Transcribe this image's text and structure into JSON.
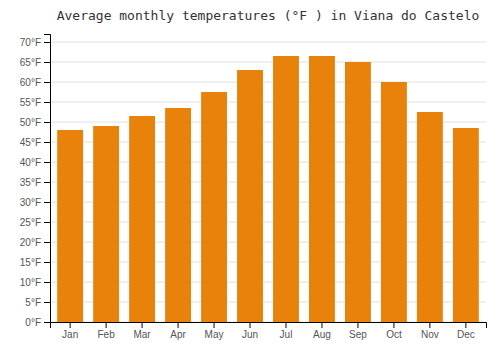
{
  "chart_data": {
    "type": "bar",
    "title": "Average monthly temperatures (°F ) in Viana do Castelo",
    "categories": [
      "Jan",
      "Feb",
      "Mar",
      "Apr",
      "May",
      "Jun",
      "Jul",
      "Aug",
      "Sep",
      "Oct",
      "Nov",
      "Dec"
    ],
    "values": [
      48,
      49,
      51.5,
      53.5,
      57.5,
      63,
      66.5,
      66.5,
      65,
      60,
      52.5,
      48.5
    ],
    "color": "#E8820A",
    "ylim": [
      0,
      72
    ],
    "yticks": [
      {
        "value": 0,
        "label": "0°F"
      },
      {
        "value": 5,
        "label": "5°F"
      },
      {
        "value": 10,
        "label": "10°F"
      },
      {
        "value": 15,
        "label": "15°F"
      },
      {
        "value": 20,
        "label": "20°F"
      },
      {
        "value": 25,
        "label": "25°F"
      },
      {
        "value": 30,
        "label": "30°F"
      },
      {
        "value": 35,
        "label": "35°F"
      },
      {
        "value": 40,
        "label": "40°F"
      },
      {
        "value": 45,
        "label": "45°F"
      },
      {
        "value": 50,
        "label": "50°F"
      },
      {
        "value": 55,
        "label": "55°F"
      },
      {
        "value": 60,
        "label": "60°F"
      },
      {
        "value": 65,
        "label": "65°F"
      },
      {
        "value": 70,
        "label": "70°F"
      }
    ],
    "grid": true
  }
}
